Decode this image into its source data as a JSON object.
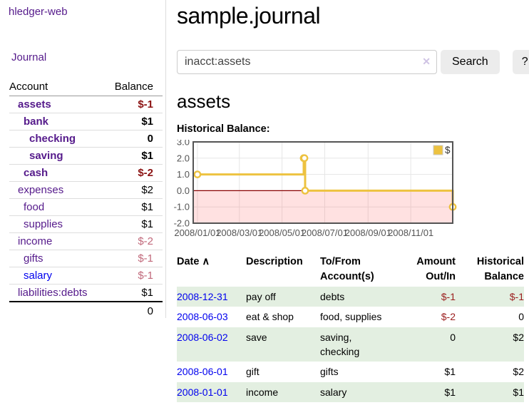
{
  "sidebar": {
    "brand": "hledger-web",
    "nav": {
      "journal": "Journal"
    },
    "accounts_table": {
      "headers": [
        "Account",
        "Balance"
      ],
      "rows": [
        {
          "name": "assets",
          "depth": 1,
          "bold": true,
          "link_color": "purple",
          "balance": "$-1",
          "balance_class": "neg-strong",
          "balance_bold": true
        },
        {
          "name": "bank",
          "depth": 2,
          "bold": true,
          "link_color": "purple",
          "balance": "$1",
          "balance_class": "",
          "balance_bold": true
        },
        {
          "name": "checking",
          "depth": 3,
          "bold": true,
          "link_color": "purple",
          "balance": "0",
          "balance_class": "",
          "balance_bold": true
        },
        {
          "name": "saving",
          "depth": 3,
          "bold": true,
          "link_color": "purple",
          "balance": "$1",
          "balance_class": "",
          "balance_bold": true
        },
        {
          "name": "cash",
          "depth": 2,
          "bold": true,
          "link_color": "purple",
          "balance": "$-2",
          "balance_class": "neg-strong",
          "balance_bold": true
        },
        {
          "name": "expenses",
          "depth": 1,
          "bold": false,
          "link_color": "purple",
          "balance": "$2",
          "balance_class": "",
          "balance_bold": false
        },
        {
          "name": "food",
          "depth": 2,
          "bold": false,
          "link_color": "purple",
          "balance": "$1",
          "balance_class": "",
          "balance_bold": false
        },
        {
          "name": "supplies",
          "depth": 2,
          "bold": false,
          "link_color": "purple",
          "balance": "$1",
          "balance_class": "",
          "balance_bold": false
        },
        {
          "name": "income",
          "depth": 1,
          "bold": false,
          "link_color": "purple",
          "balance": "$-2",
          "balance_class": "neg-soft",
          "balance_bold": false
        },
        {
          "name": "gifts",
          "depth": 2,
          "bold": false,
          "link_color": "purple",
          "balance": "$-1",
          "balance_class": "neg-soft",
          "balance_bold": false
        },
        {
          "name": "salary",
          "depth": 2,
          "bold": false,
          "link_color": "blue",
          "balance": "$-1",
          "balance_class": "neg-soft",
          "balance_bold": false
        },
        {
          "name": "liabilities:debts",
          "depth": 1,
          "bold": false,
          "link_color": "purple",
          "balance": "$1",
          "balance_class": "",
          "balance_bold": false
        }
      ],
      "total": "0"
    }
  },
  "main": {
    "title": "sample.journal",
    "search": {
      "value": "inacct:assets",
      "clear_icon": "✕",
      "button": "Search",
      "help_button": "?"
    },
    "account_heading": "assets",
    "chart_label": "Historical Balance:",
    "register": {
      "headers": {
        "date": "Date",
        "sort_icon": "∧",
        "description": "Description",
        "accounts": "To/From Account(s)",
        "amount": "Amount Out/In",
        "balance": "Historical Balance"
      },
      "rows": [
        {
          "date": "2008-12-31",
          "description": "pay off",
          "accounts": "debts",
          "amount": "$-1",
          "amount_neg": true,
          "balance": "$-1",
          "balance_neg": true,
          "shaded": true
        },
        {
          "date": "2008-06-03",
          "description": "eat & shop",
          "accounts": "food, supplies",
          "amount": "$-2",
          "amount_neg": true,
          "balance": "0",
          "balance_neg": false,
          "shaded": false
        },
        {
          "date": "2008-06-02",
          "description": "save",
          "accounts": "saving, checking",
          "amount": "0",
          "amount_neg": false,
          "balance": "$2",
          "balance_neg": false,
          "shaded": true
        },
        {
          "date": "2008-06-01",
          "description": "gift",
          "accounts": "gifts",
          "amount": "$1",
          "amount_neg": false,
          "balance": "$2",
          "balance_neg": false,
          "shaded": false
        },
        {
          "date": "2008-01-01",
          "description": "income",
          "accounts": "salary",
          "amount": "$1",
          "amount_neg": false,
          "balance": "$1",
          "balance_neg": false,
          "shaded": true
        }
      ]
    }
  },
  "chart_data": {
    "type": "line",
    "title": "Historical Balance",
    "step": true,
    "series": [
      {
        "name": "$",
        "points": [
          [
            "2008-01-01",
            1
          ],
          [
            "2008-06-01",
            2
          ],
          [
            "2008-06-02",
            2
          ],
          [
            "2008-06-03",
            0
          ],
          [
            "2008-12-31",
            -1
          ]
        ]
      }
    ],
    "x_domain": [
      "2007-12-26",
      "2008-12-31"
    ],
    "x_ticks": [
      "2008/01/01",
      "2008/03/01",
      "2008/05/01",
      "2008/07/01",
      "2008/09/01",
      "2008/11/01"
    ],
    "y_ticks": [
      "3.0",
      "2.0",
      "1.0",
      "0.0",
      "-1.0",
      "-2.0"
    ],
    "ylim": [
      -2,
      3
    ],
    "grid": true,
    "legend": {
      "label": "$",
      "position": "top-right"
    },
    "colors": {
      "line": "#edc240",
      "marker_fill": "#ffffff",
      "negative_fill": "rgba(255,90,90,0.18)",
      "zero_line": "#8b0000",
      "border": "#545454",
      "gridline": "#e6e6e6",
      "axis_text": "#545454"
    }
  }
}
